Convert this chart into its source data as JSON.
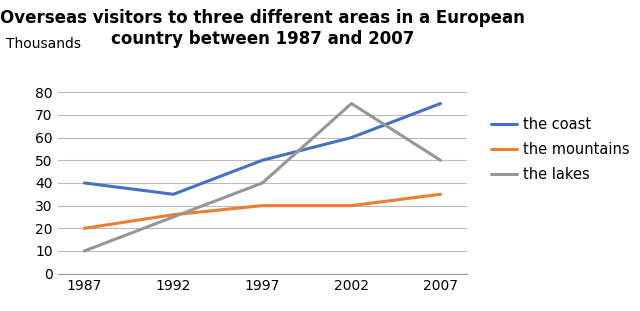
{
  "title_line1": "Overseas visitors to three different areas in a European",
  "title_line2": "country between 1987 and 2007",
  "ylabel": "Thousands",
  "years": [
    1987,
    1992,
    1997,
    2002,
    2007
  ],
  "series": {
    "the coast": {
      "values": [
        40,
        35,
        50,
        60,
        75
      ],
      "color": "#4472c4",
      "linewidth": 2.2
    },
    "the mountains": {
      "values": [
        20,
        26,
        30,
        30,
        35
      ],
      "color": "#ed7d31",
      "linewidth": 2.2
    },
    "the lakes": {
      "values": [
        10,
        25,
        40,
        75,
        50
      ],
      "color": "#969696",
      "linewidth": 2.2
    }
  },
  "ylim": [
    0,
    85
  ],
  "yticks": [
    0,
    10,
    20,
    30,
    40,
    50,
    60,
    70,
    80
  ],
  "background_color": "#ffffff",
  "grid_color": "#bbbbbb",
  "title_fontsize": 12,
  "tick_fontsize": 10,
  "legend_fontsize": 10.5
}
